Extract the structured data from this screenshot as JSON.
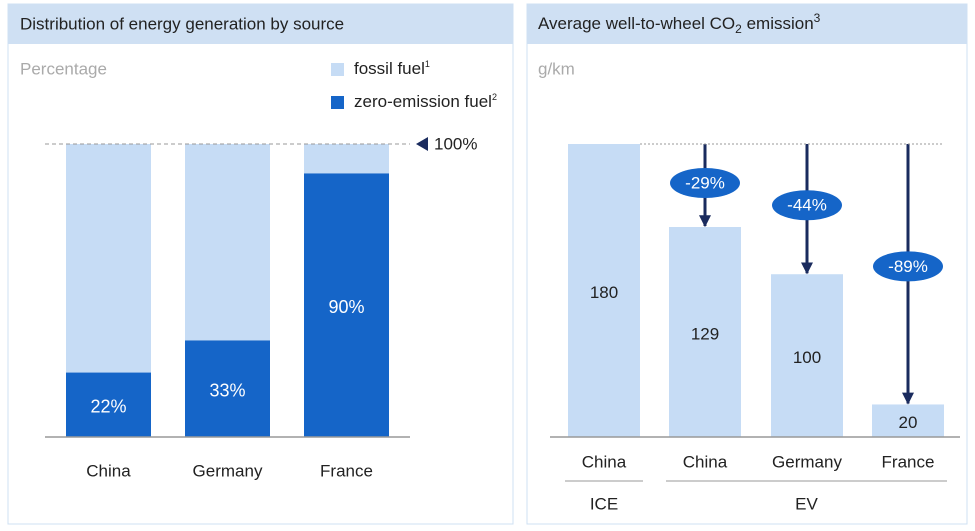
{
  "chart_data": [
    {
      "type": "stacked_bar",
      "title": "Distribution of energy generation by source",
      "subtitle": "Percentage",
      "categories": [
        "China",
        "Germany",
        "France"
      ],
      "series": [
        {
          "name": "fossil fuel",
          "note": "1",
          "color": "#c6dcf5",
          "values": [
            78,
            67,
            10
          ]
        },
        {
          "name": "zero-emission fuel",
          "note": "2",
          "color": "#1565c8",
          "values": [
            22,
            33,
            90
          ],
          "value_labels": [
            "22%",
            "33%",
            "90%"
          ]
        }
      ],
      "ylim": [
        0,
        100
      ],
      "reference": {
        "value": 100,
        "label": "100%"
      }
    },
    {
      "type": "bar",
      "title": [
        "Average well-to-wheel CO",
        "2",
        " emission",
        "3"
      ],
      "subtitle": "g/km",
      "categories": [
        "China",
        "China",
        "Germany",
        "France"
      ],
      "groups": [
        {
          "label": "ICE",
          "count": 1
        },
        {
          "label": "EV",
          "count": 3
        }
      ],
      "values": [
        180,
        129,
        100,
        20
      ],
      "color": "#c6dcf5",
      "reductions": {
        "values": [
          null,
          -29,
          -44,
          -89
        ],
        "value_labels": [
          null,
          "-29%",
          "-44%",
          "-89%"
        ],
        "color": "#1565c8",
        "arrow_color": "#1a2b5e"
      },
      "ylim": [
        0,
        180
      ]
    }
  ]
}
